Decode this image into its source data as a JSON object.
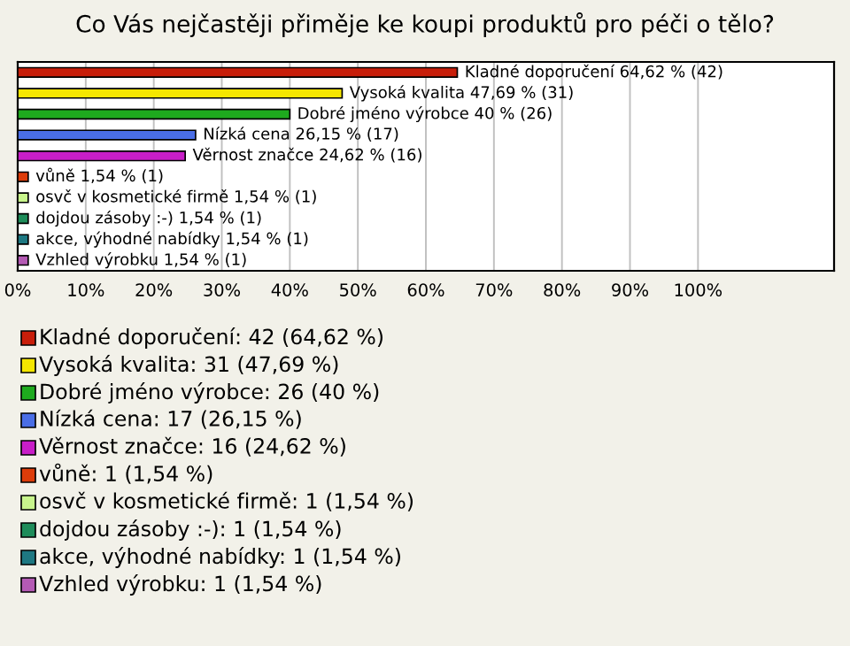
{
  "chart_data": {
    "type": "bar",
    "orientation": "horizontal",
    "title": "Co Vás nejčastěji přiměje ke koupi produktů pro péči o tělo?",
    "categories": [
      "Kladné doporučení",
      "Vysoká kvalita",
      "Dobré jméno výrobce",
      "Nízká cena",
      "Věrnost značce",
      "vůně",
      "osvč v kosmetické firmě",
      "dojdou zásoby :-)",
      "akce, výhodné nabídky",
      "Vzhled výrobku"
    ],
    "values": [
      64.62,
      47.69,
      40,
      26.15,
      24.62,
      1.54,
      1.54,
      1.54,
      1.54,
      1.54
    ],
    "colors": [
      "#c81e0a",
      "#f5e600",
      "#1eaa1e",
      "#4a6ee6",
      "#c81ec8",
      "#dc3c0a",
      "#c8f58c",
      "#1e8c5a",
      "#1e7882",
      "#b45ab4"
    ],
    "value_labels": [
      "64,62 % (42)",
      "47,69 % (31)",
      "40 % (26)",
      "26,15 % (17)",
      "24,62 % (16)",
      "1,54 % (1)",
      "1,54 % (1)",
      "1,54 % (1)",
      "1,54 % (1)",
      "1,54 % (1)"
    ],
    "annotations": [
      "Kladné doporučení: 42 (64,62 %)",
      "Vysoká kvalita: 31 (47,69 %)",
      "Dobré jméno výrobce: 26 (40 %)",
      "Nízká cena: 17 (26,15 %)",
      "Věrnost značce: 16 (24,62 %)",
      "vůně: 1 (1,54 %)",
      "osvč v kosmetické firmě: 1 (1,54 %)",
      "dojdou zásoby :-): 1 (1,54 %)",
      "akce, výhodné nabídky: 1 (1,54 %)",
      "Vzhled výrobku: 1 (1,54 %)"
    ],
    "xlim": [
      0,
      120
    ],
    "xticks": [
      {
        "value": 0,
        "label": "0%"
      },
      {
        "value": 10,
        "label": "10%"
      },
      {
        "value": 20,
        "label": "20%"
      },
      {
        "value": 30,
        "label": "30%"
      },
      {
        "value": 40,
        "label": "40%"
      },
      {
        "value": 50,
        "label": "50%"
      },
      {
        "value": 60,
        "label": "60%"
      },
      {
        "value": 70,
        "label": "70%"
      },
      {
        "value": 80,
        "label": "80%"
      },
      {
        "value": 90,
        "label": "90%"
      },
      {
        "value": 100,
        "label": "100%"
      }
    ],
    "grid": "x",
    "tick_labels": "x"
  }
}
